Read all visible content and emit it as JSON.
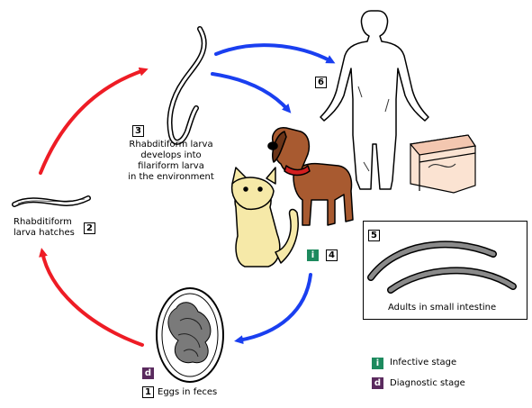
{
  "colors": {
    "infective": "#1d8a5e",
    "diagnostic": "#5a2a5e",
    "red_arrow": "#ee1c25",
    "blue_arrow": "#1a3ff0"
  },
  "stages": {
    "s1": {
      "number": "1",
      "label": "Eggs in feces",
      "badge": "d"
    },
    "s2": {
      "number": "2",
      "label_line1": "Rhabditiform",
      "label_line2": "larva hatches"
    },
    "s3": {
      "number": "3",
      "label_line1": "Rhabditiform larva",
      "label_line2": "develops into",
      "label_line3": "filariform larva",
      "label_line4": "in the environment"
    },
    "s4": {
      "number": "4",
      "badge": "i"
    },
    "s5": {
      "number": "5",
      "label": "Adults in small intestine"
    },
    "s6": {
      "number": "6"
    }
  },
  "legend": {
    "infective_badge": "i",
    "infective_label": "Infective stage",
    "diagnostic_badge": "d",
    "diagnostic_label": "Diagnostic stage"
  }
}
